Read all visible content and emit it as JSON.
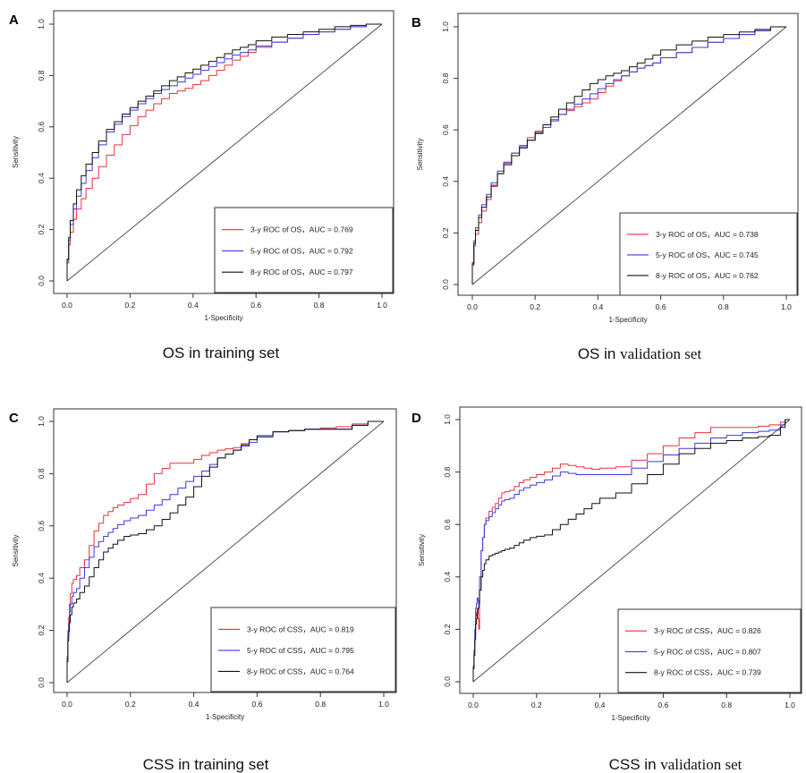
{
  "colors": {
    "red": "#e8323a",
    "blue": "#3a3ae0",
    "black": "#111111"
  },
  "chart_data": [
    {
      "type": "line",
      "panel": "A",
      "caption": "OS in training set",
      "caption_serif_part": "",
      "xlabel": "1-Specificity",
      "ylabel": "Sensitivity",
      "xlim": [
        0,
        1
      ],
      "ylim": [
        0,
        1
      ],
      "xticks": [
        "0.0",
        "0.2",
        "0.4",
        "0.6",
        "0.8",
        "1.0"
      ],
      "yticks": [
        "0.0",
        "0.2",
        "0.4",
        "0.6",
        "0.8",
        "1.0"
      ],
      "legend_position": "bottom-right",
      "series": [
        {
          "name": "3-y ROC of OS，AUC = 0.769",
          "color": "#e8323a",
          "x": [
            0,
            0.01,
            0.03,
            0.06,
            0.1,
            0.15,
            0.2,
            0.25,
            0.3,
            0.35,
            0.4,
            0.45,
            0.5,
            0.55,
            0.6,
            0.7,
            0.8,
            0.9,
            1.0
          ],
          "y": [
            0,
            0.14,
            0.24,
            0.32,
            0.4,
            0.49,
            0.57,
            0.64,
            0.69,
            0.73,
            0.75,
            0.78,
            0.82,
            0.86,
            0.89,
            0.93,
            0.96,
            0.98,
            1.0
          ]
        },
        {
          "name": "5-y ROC of OS，AUC = 0.792",
          "color": "#3a3ae0",
          "x": [
            0,
            0.01,
            0.03,
            0.06,
            0.1,
            0.15,
            0.2,
            0.25,
            0.3,
            0.35,
            0.4,
            0.45,
            0.5,
            0.55,
            0.6,
            0.7,
            0.8,
            0.9,
            1.0
          ],
          "y": [
            0,
            0.16,
            0.28,
            0.38,
            0.48,
            0.58,
            0.64,
            0.69,
            0.73,
            0.76,
            0.79,
            0.82,
            0.85,
            0.88,
            0.9,
            0.93,
            0.96,
            0.98,
            1.0
          ]
        },
        {
          "name": "8-y ROC of OS，AUC = 0.797",
          "color": "#111111",
          "x": [
            0,
            0.01,
            0.03,
            0.06,
            0.1,
            0.15,
            0.2,
            0.25,
            0.3,
            0.35,
            0.4,
            0.45,
            0.5,
            0.55,
            0.6,
            0.7,
            0.8,
            0.9,
            1.0
          ],
          "y": [
            0,
            0.17,
            0.3,
            0.41,
            0.5,
            0.59,
            0.65,
            0.7,
            0.74,
            0.78,
            0.81,
            0.84,
            0.87,
            0.9,
            0.92,
            0.95,
            0.97,
            0.99,
            1.0
          ]
        }
      ]
    },
    {
      "type": "line",
      "panel": "B",
      "caption": "OS in ",
      "caption_serif_part": "validation set",
      "xlabel": "1-Specificity",
      "ylabel": "Sensitivity",
      "xlim": [
        0,
        1
      ],
      "ylim": [
        0,
        1
      ],
      "xticks": [
        "0.0",
        "0.2",
        "0.4",
        "0.6",
        "0.8",
        "1.0"
      ],
      "yticks": [
        "0.0",
        "0.2",
        "0.4",
        "0.6",
        "0.8",
        "1.0"
      ],
      "legend_position": "bottom-right",
      "series": [
        {
          "name": "3-y ROC of OS，AUC = 0.738",
          "color": "#e8323a",
          "x": [
            0,
            0.01,
            0.03,
            0.06,
            0.1,
            0.15,
            0.2,
            0.25,
            0.3,
            0.35,
            0.4,
            0.45,
            0.5,
            0.55,
            0.6,
            0.7,
            0.8,
            0.9,
            1.0
          ],
          "y": [
            0,
            0.15,
            0.24,
            0.33,
            0.43,
            0.51,
            0.57,
            0.62,
            0.66,
            0.69,
            0.72,
            0.77,
            0.81,
            0.84,
            0.86,
            0.9,
            0.94,
            0.97,
            1.0
          ]
        },
        {
          "name": "5-y ROC of OS，AUC = 0.745",
          "color": "#3a3ae0",
          "x": [
            0,
            0.01,
            0.03,
            0.06,
            0.1,
            0.15,
            0.2,
            0.25,
            0.3,
            0.35,
            0.4,
            0.45,
            0.5,
            0.55,
            0.6,
            0.7,
            0.8,
            0.9,
            1.0
          ],
          "y": [
            0,
            0.17,
            0.27,
            0.35,
            0.44,
            0.51,
            0.56,
            0.61,
            0.66,
            0.7,
            0.74,
            0.78,
            0.81,
            0.84,
            0.86,
            0.9,
            0.94,
            0.97,
            1.0
          ]
        },
        {
          "name": "8-y ROC of OS，AUC = 0.762",
          "color": "#111111",
          "x": [
            0,
            0.01,
            0.03,
            0.06,
            0.1,
            0.15,
            0.2,
            0.25,
            0.3,
            0.35,
            0.4,
            0.45,
            0.5,
            0.55,
            0.6,
            0.7,
            0.8,
            0.9,
            1.0
          ],
          "y": [
            0,
            0.16,
            0.26,
            0.34,
            0.43,
            0.5,
            0.56,
            0.62,
            0.68,
            0.73,
            0.78,
            0.81,
            0.83,
            0.86,
            0.89,
            0.93,
            0.96,
            0.98,
            1.0
          ]
        }
      ]
    },
    {
      "type": "line",
      "panel": "C",
      "caption": "CSS in training set",
      "caption_serif_part": "",
      "xlabel": "1-Specificity",
      "ylabel": "Sensitivity",
      "xlim": [
        0,
        1
      ],
      "ylim": [
        0,
        1
      ],
      "xticks": [
        "0.0",
        "0.2",
        "0.4",
        "0.6",
        "0.8",
        "1.0"
      ],
      "yticks": [
        "0.0",
        "0.2",
        "0.4",
        "0.6",
        "0.8",
        "1.0"
      ],
      "legend_position": "bottom-right",
      "series": [
        {
          "name": "3-y ROC of CSS，AUC = 0.819",
          "color": "#e8323a",
          "x": [
            0,
            0.005,
            0.01,
            0.02,
            0.04,
            0.07,
            0.1,
            0.13,
            0.16,
            0.2,
            0.25,
            0.3,
            0.35,
            0.4,
            0.45,
            0.5,
            0.55,
            0.6,
            0.7,
            0.8,
            0.9,
            1.0
          ],
          "y": [
            0,
            0.2,
            0.3,
            0.38,
            0.41,
            0.47,
            0.58,
            0.64,
            0.67,
            0.69,
            0.72,
            0.8,
            0.84,
            0.84,
            0.87,
            0.89,
            0.9,
            0.93,
            0.96,
            0.97,
            0.98,
            1.0
          ]
        },
        {
          "name": "5-y ROC of CSS，AUC = 0.795",
          "color": "#3a3ae0",
          "x": [
            0,
            0.005,
            0.01,
            0.02,
            0.04,
            0.07,
            0.1,
            0.13,
            0.16,
            0.2,
            0.25,
            0.3,
            0.35,
            0.4,
            0.45,
            0.5,
            0.55,
            0.6,
            0.7,
            0.8,
            0.9,
            1.0
          ],
          "y": [
            0,
            0.18,
            0.27,
            0.33,
            0.36,
            0.44,
            0.52,
            0.56,
            0.59,
            0.62,
            0.64,
            0.68,
            0.72,
            0.77,
            0.81,
            0.86,
            0.89,
            0.92,
            0.96,
            0.97,
            0.97,
            1.0
          ]
        },
        {
          "name": "8-y ROC of CSS，AUC = 0.764",
          "color": "#111111",
          "x": [
            0,
            0.005,
            0.01,
            0.02,
            0.04,
            0.07,
            0.1,
            0.13,
            0.16,
            0.2,
            0.25,
            0.3,
            0.35,
            0.4,
            0.45,
            0.5,
            0.55,
            0.6,
            0.7,
            0.8,
            0.9,
            1.0
          ],
          "y": [
            0,
            0.16,
            0.23,
            0.29,
            0.32,
            0.37,
            0.44,
            0.5,
            0.53,
            0.56,
            0.57,
            0.6,
            0.65,
            0.71,
            0.79,
            0.86,
            0.89,
            0.93,
            0.96,
            0.97,
            0.97,
            1.0
          ]
        }
      ]
    },
    {
      "type": "line",
      "panel": "D",
      "caption": "CSS in ",
      "caption_serif_part": "validation set",
      "xlabel": "1-Specificity",
      "ylabel": "Sensitivity",
      "xlim": [
        0,
        1
      ],
      "ylim": [
        0,
        1
      ],
      "xticks": [
        "0.0",
        "0.2",
        "0.4",
        "0.6",
        "0.8",
        "1.0"
      ],
      "yticks": [
        "0.0",
        "0.2",
        "0.4",
        "0.6",
        "0.8",
        "1.0"
      ],
      "legend_position": "bottom-right",
      "series": [
        {
          "name": "3-y ROC of CSS，AUC = 0.826",
          "color": "#e8323a",
          "x": [
            0,
            0.005,
            0.01,
            0.015,
            0.02,
            0.03,
            0.04,
            0.06,
            0.08,
            0.1,
            0.13,
            0.16,
            0.2,
            0.25,
            0.3,
            0.35,
            0.4,
            0.5,
            0.6,
            0.7,
            0.8,
            0.9,
            0.97,
            1.0
          ],
          "y": [
            0,
            0.1,
            0.25,
            0.28,
            0.2,
            0.5,
            0.6,
            0.65,
            0.68,
            0.72,
            0.73,
            0.76,
            0.78,
            0.8,
            0.83,
            0.82,
            0.81,
            0.82,
            0.87,
            0.93,
            0.97,
            0.97,
            0.98,
            1.0
          ]
        },
        {
          "name": "5-y ROC of CSS，AUC = 0.807",
          "color": "#3a3ae0",
          "x": [
            0,
            0.005,
            0.01,
            0.015,
            0.02,
            0.03,
            0.04,
            0.06,
            0.08,
            0.1,
            0.13,
            0.16,
            0.2,
            0.25,
            0.3,
            0.35,
            0.4,
            0.5,
            0.6,
            0.7,
            0.8,
            0.9,
            0.97,
            1.0
          ],
          "y": [
            0,
            0.12,
            0.28,
            0.32,
            0.3,
            0.5,
            0.6,
            0.63,
            0.66,
            0.69,
            0.7,
            0.73,
            0.75,
            0.77,
            0.8,
            0.79,
            0.79,
            0.79,
            0.84,
            0.89,
            0.93,
            0.95,
            0.96,
            1.0
          ]
        },
        {
          "name": "8-y ROC of CSS，AUC = 0.739",
          "color": "#111111",
          "x": [
            0,
            0.005,
            0.01,
            0.015,
            0.02,
            0.03,
            0.04,
            0.06,
            0.08,
            0.1,
            0.13,
            0.16,
            0.2,
            0.25,
            0.3,
            0.35,
            0.4,
            0.5,
            0.6,
            0.7,
            0.8,
            0.9,
            0.97,
            1.0
          ],
          "y": [
            0,
            0.1,
            0.22,
            0.26,
            0.3,
            0.4,
            0.45,
            0.48,
            0.49,
            0.5,
            0.51,
            0.53,
            0.55,
            0.56,
            0.6,
            0.64,
            0.68,
            0.72,
            0.79,
            0.87,
            0.91,
            0.93,
            0.94,
            1.0
          ]
        }
      ]
    }
  ]
}
